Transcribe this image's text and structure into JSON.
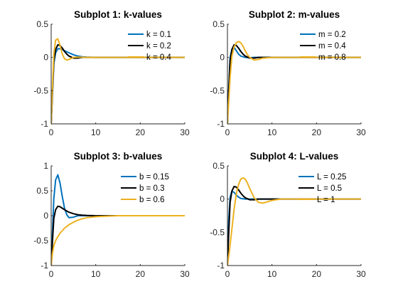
{
  "chart_data": [
    {
      "type": "line",
      "title": "Subplot 1: k-values",
      "xlim": [
        0,
        30
      ],
      "ylim": [
        -1,
        0.5
      ],
      "xticks": [
        0,
        10,
        20,
        30
      ],
      "yticks": [
        -1,
        -0.5,
        0,
        0.5
      ],
      "xtick_labels": [
        "0",
        "10",
        "20",
        "30"
      ],
      "ytick_labels": [
        "-1",
        "-0.5",
        "0",
        "0.5"
      ],
      "legend": "top-right",
      "series": [
        {
          "name": "k = 0.1",
          "color": "#0072BD",
          "x": [
            0,
            0.3,
            0.6,
            1,
            1.5,
            2,
            2.5,
            3,
            4,
            5,
            6,
            7,
            8,
            10,
            15,
            20,
            25,
            30
          ],
          "y": [
            -1,
            -0.55,
            -0.1,
            0.07,
            0.13,
            0.13,
            0.12,
            0.1,
            0.07,
            0.04,
            0.02,
            0.01,
            0.005,
            0,
            0,
            0,
            0,
            0
          ]
        },
        {
          "name": "k = 0.2",
          "color": "#000000",
          "x": [
            0,
            0.3,
            0.6,
            1,
            1.5,
            2,
            2.5,
            3,
            3.5,
            4,
            5,
            6,
            7,
            8,
            10,
            15,
            20,
            25,
            30
          ],
          "y": [
            -1,
            -0.5,
            -0.05,
            0.12,
            0.19,
            0.18,
            0.14,
            0.09,
            0.05,
            0.02,
            -0.01,
            -0.01,
            0,
            0,
            0,
            0,
            0,
            0,
            0
          ]
        },
        {
          "name": "k = 0.4",
          "color": "#EDB120",
          "x": [
            0,
            0.3,
            0.6,
            1,
            1.5,
            2,
            2.5,
            3,
            3.5,
            4,
            5,
            6,
            8,
            10,
            15,
            20,
            25,
            30
          ],
          "y": [
            -1,
            -0.45,
            0.05,
            0.26,
            0.28,
            0.18,
            0.05,
            -0.02,
            -0.04,
            -0.03,
            0,
            0.005,
            0,
            0,
            0,
            0,
            0,
            0
          ]
        }
      ]
    },
    {
      "type": "line",
      "title": "Subplot 2: m-values",
      "xlim": [
        0,
        30
      ],
      "ylim": [
        -1,
        0.5
      ],
      "xticks": [
        0,
        10,
        20,
        30
      ],
      "yticks": [
        -1,
        -0.5,
        0,
        0.5
      ],
      "xtick_labels": [
        "0",
        "10",
        "20",
        "30"
      ],
      "ytick_labels": [
        "-1",
        "-0.5",
        "0",
        "0.5"
      ],
      "legend": "top-right",
      "series": [
        {
          "name": "m = 0.2",
          "color": "#0072BD",
          "x": [
            0,
            0.3,
            0.6,
            1,
            1.5,
            2,
            2.5,
            3,
            4,
            5,
            6,
            8,
            10,
            15,
            20,
            25,
            30
          ],
          "y": [
            -1,
            -0.45,
            0.0,
            0.12,
            0.15,
            0.1,
            0.05,
            0.02,
            0,
            -0.005,
            0,
            0,
            0,
            0,
            0,
            0,
            0
          ]
        },
        {
          "name": "m = 0.4",
          "color": "#000000",
          "x": [
            0,
            0.3,
            0.6,
            1,
            1.5,
            2,
            2.5,
            3,
            3.5,
            4,
            5,
            6,
            7,
            8,
            10,
            15,
            20,
            25,
            30
          ],
          "y": [
            -1,
            -0.5,
            -0.05,
            0.12,
            0.19,
            0.18,
            0.14,
            0.09,
            0.05,
            0.02,
            -0.01,
            -0.01,
            0,
            0,
            0,
            0,
            0,
            0,
            0
          ]
        },
        {
          "name": "m = 0.8",
          "color": "#EDB120",
          "x": [
            0,
            0.3,
            0.6,
            1,
            1.5,
            2,
            2.5,
            3,
            3.5,
            4,
            4.5,
            5,
            6,
            7,
            8,
            10,
            15,
            20,
            25,
            30
          ],
          "y": [
            -1,
            -0.65,
            -0.3,
            0.02,
            0.16,
            0.22,
            0.24,
            0.22,
            0.17,
            0.1,
            0.04,
            0,
            -0.04,
            -0.03,
            -0.01,
            0,
            0,
            0,
            0,
            0
          ]
        }
      ]
    },
    {
      "type": "line",
      "title": "Subplot 3: b-values",
      "xlim": [
        0,
        30
      ],
      "ylim": [
        -1,
        1
      ],
      "xticks": [
        0,
        10,
        20,
        30
      ],
      "yticks": [
        -1,
        -0.5,
        0,
        0.5,
        1
      ],
      "xtick_labels": [
        "0",
        "10",
        "20",
        "30"
      ],
      "ytick_labels": [
        "-1",
        "-0.5",
        "0",
        "0.5",
        "1"
      ],
      "legend": "top-right",
      "series": [
        {
          "name": "b = 0.15",
          "color": "#0072BD",
          "x": [
            0,
            0.3,
            0.6,
            1,
            1.5,
            2,
            2.5,
            3,
            3.5,
            4,
            5,
            6,
            8,
            10,
            15,
            20,
            25,
            30
          ],
          "y": [
            -1,
            -0.3,
            0.35,
            0.72,
            0.82,
            0.65,
            0.38,
            0.15,
            0.02,
            -0.04,
            -0.03,
            0,
            0,
            0,
            0,
            0,
            0,
            0
          ]
        },
        {
          "name": "b = 0.3",
          "color": "#000000",
          "x": [
            0,
            0.3,
            0.6,
            1,
            1.5,
            2,
            2.5,
            3,
            4,
            5,
            6,
            7,
            8,
            10,
            12,
            15,
            20,
            25,
            30
          ],
          "y": [
            -1,
            -0.5,
            -0.05,
            0.12,
            0.19,
            0.18,
            0.15,
            0.12,
            0.07,
            0.04,
            0.02,
            0.01,
            0.005,
            0,
            0,
            0,
            0,
            0,
            0
          ]
        },
        {
          "name": "b = 0.6",
          "color": "#EDB120",
          "x": [
            0,
            0.3,
            0.6,
            1,
            1.5,
            2,
            3,
            4,
            5,
            6,
            7,
            8,
            10,
            12,
            15,
            20,
            25,
            30
          ],
          "y": [
            -1,
            -0.75,
            -0.6,
            -0.5,
            -0.42,
            -0.35,
            -0.25,
            -0.18,
            -0.13,
            -0.09,
            -0.06,
            -0.04,
            -0.02,
            -0.01,
            0,
            0,
            0,
            0
          ]
        }
      ]
    },
    {
      "type": "line",
      "title": "Subplot 4: L-values",
      "xlim": [
        0,
        30
      ],
      "ylim": [
        -1,
        0.5
      ],
      "xticks": [
        0,
        10,
        20,
        30
      ],
      "yticks": [
        -1,
        -0.5,
        0,
        0.5
      ],
      "xtick_labels": [
        "0",
        "10",
        "20",
        "30"
      ],
      "ytick_labels": [
        "-1",
        "-0.5",
        "0",
        "0.5"
      ],
      "legend": "top-right",
      "series": [
        {
          "name": "L = 0.25",
          "color": "#0072BD",
          "x": [
            0,
            0.3,
            0.6,
            1,
            1.5,
            2,
            2.5,
            3,
            4,
            5,
            6,
            8,
            10,
            15,
            20,
            25,
            30
          ],
          "y": [
            -1,
            -0.3,
            0.03,
            0.12,
            0.1,
            0.06,
            0.03,
            0.01,
            0,
            0,
            0,
            0,
            0,
            0,
            0,
            0,
            0
          ]
        },
        {
          "name": "L = 0.5",
          "color": "#000000",
          "x": [
            0,
            0.3,
            0.6,
            1,
            1.5,
            2,
            2.5,
            3,
            3.5,
            4,
            5,
            6,
            7,
            8,
            10,
            15,
            20,
            25,
            30
          ],
          "y": [
            -1,
            -0.5,
            -0.05,
            0.12,
            0.19,
            0.18,
            0.14,
            0.09,
            0.05,
            0.02,
            -0.01,
            -0.01,
            0,
            0,
            0,
            0,
            0,
            0,
            0
          ]
        },
        {
          "name": "L = 1",
          "color": "#EDB120",
          "x": [
            0,
            0.5,
            1,
            1.5,
            2,
            2.5,
            3,
            3.5,
            4,
            4.5,
            5,
            6,
            7,
            8,
            9,
            10,
            12,
            15,
            20,
            25,
            30
          ],
          "y": [
            -1,
            -0.75,
            -0.45,
            -0.15,
            0.08,
            0.22,
            0.3,
            0.32,
            0.3,
            0.24,
            0.16,
            0.02,
            -0.05,
            -0.06,
            -0.04,
            -0.02,
            0,
            0,
            0,
            0,
            0
          ]
        }
      ]
    }
  ]
}
